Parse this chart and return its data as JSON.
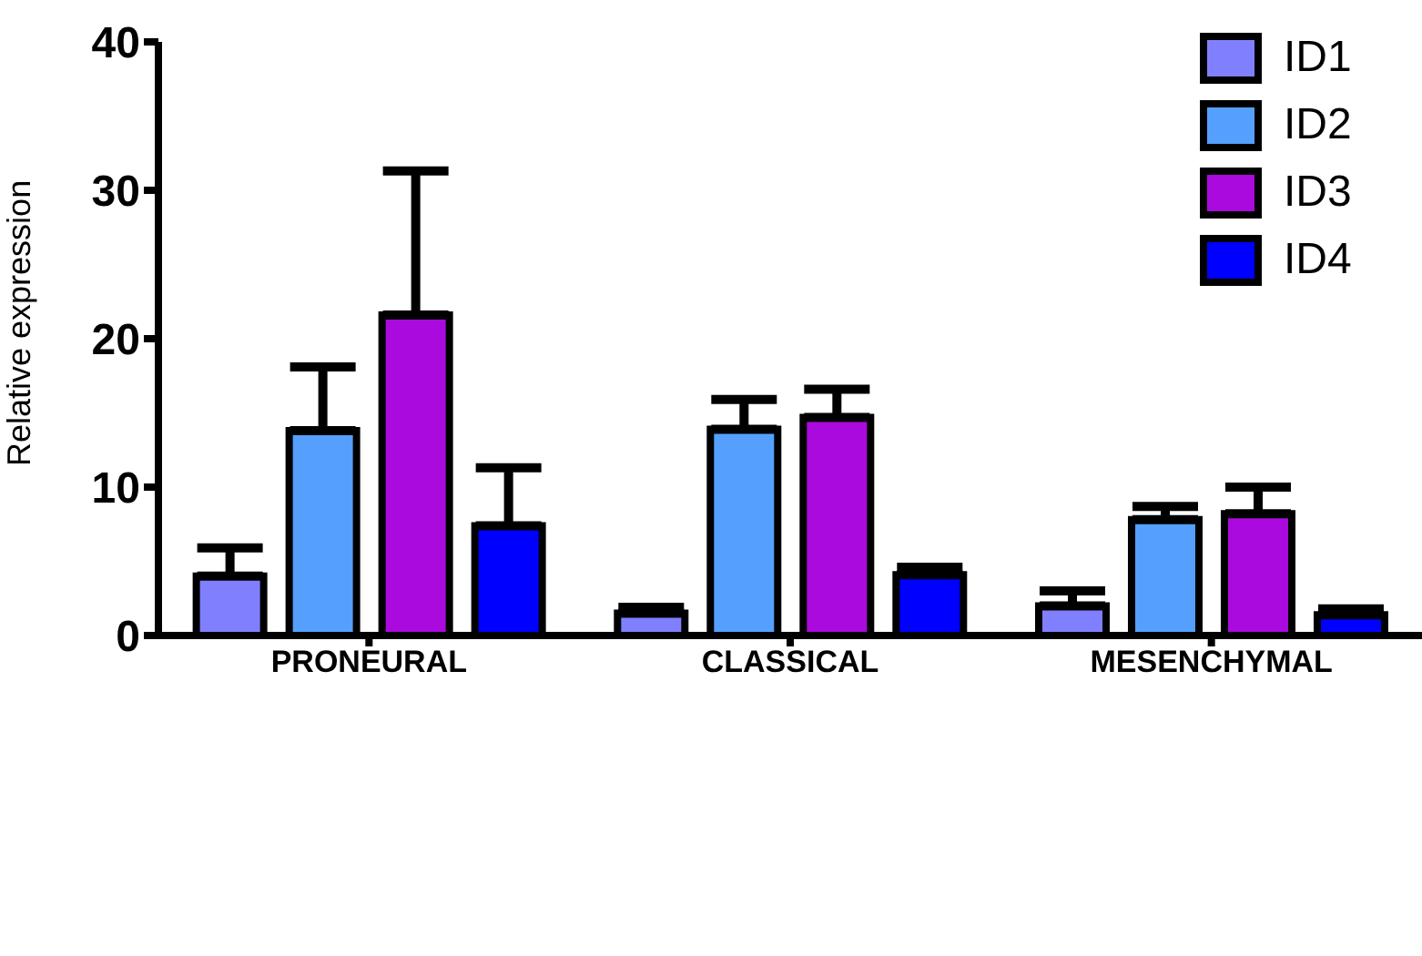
{
  "chart_data": {
    "type": "bar",
    "ylabel": "Relative expression",
    "categories": [
      "PRONEURAL",
      "CLASSICAL",
      "MESENCHYMAL"
    ],
    "series": [
      {
        "name": "ID1",
        "color": "#8080ff",
        "values": [
          4.0,
          1.5,
          2.0
        ],
        "errors": [
          [
            4.0,
            5.9
          ],
          [
            1.5,
            1.9
          ],
          [
            2.0,
            3.0
          ]
        ]
      },
      {
        "name": "ID2",
        "color": "#55a0ff",
        "values": [
          13.8,
          13.9,
          7.8
        ],
        "errors": [
          [
            13.8,
            18.1
          ],
          [
            13.9,
            15.9
          ],
          [
            7.8,
            8.7
          ]
        ]
      },
      {
        "name": "ID3",
        "color": "#aa0ade",
        "values": [
          21.6,
          14.7,
          8.2
        ],
        "errors": [
          [
            21.6,
            31.3
          ],
          [
            14.7,
            16.6
          ],
          [
            8.2,
            10.0
          ]
        ]
      },
      {
        "name": "ID4",
        "color": "#0000ff",
        "values": [
          7.4,
          4.1,
          1.4
        ],
        "errors": [
          [
            7.4,
            11.3
          ],
          [
            4.1,
            4.6
          ],
          [
            1.4,
            1.8
          ]
        ]
      }
    ],
    "ylim": [
      0,
      40
    ],
    "yticks": [
      0,
      10,
      20,
      30,
      40
    ],
    "grid": false,
    "legend": "top right"
  }
}
